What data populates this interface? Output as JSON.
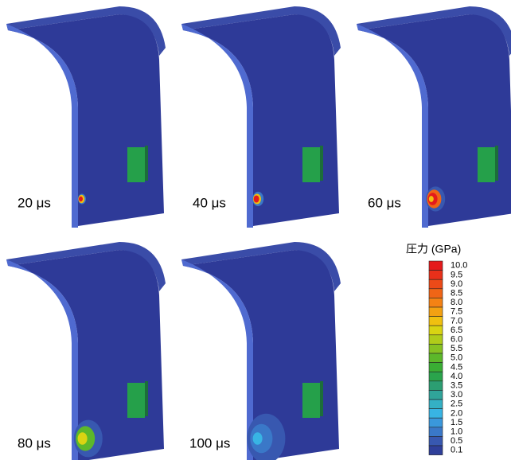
{
  "panels": [
    {
      "label": "20 μs"
    },
    {
      "label": "40 μs"
    },
    {
      "label": "60 μs"
    },
    {
      "label": "80 μs"
    },
    {
      "label": "100 μs"
    }
  ],
  "legend": {
    "title": "圧力 (GPa)",
    "levels": [
      {
        "label": "10.0",
        "color": "#e41a1c"
      },
      {
        "label": "9.5",
        "color": "#e8301a"
      },
      {
        "label": "9.0",
        "color": "#ec4a18"
      },
      {
        "label": "8.5",
        "color": "#f06516"
      },
      {
        "label": "8.0",
        "color": "#f48214"
      },
      {
        "label": "7.5",
        "color": "#f3a112"
      },
      {
        "label": "7.0",
        "color": "#f0c010"
      },
      {
        "label": "6.5",
        "color": "#d9d412"
      },
      {
        "label": "6.0",
        "color": "#b0cc1a"
      },
      {
        "label": "5.5",
        "color": "#86c222"
      },
      {
        "label": "5.0",
        "color": "#5cb82a"
      },
      {
        "label": "4.5",
        "color": "#3aae34"
      },
      {
        "label": "4.0",
        "color": "#2aa44c"
      },
      {
        "label": "3.5",
        "color": "#2c9e72"
      },
      {
        "label": "3.0",
        "color": "#30a49a"
      },
      {
        "label": "2.5",
        "color": "#34b0c4"
      },
      {
        "label": "2.0",
        "color": "#38b4e4"
      },
      {
        "label": "1.5",
        "color": "#3a98dc"
      },
      {
        "label": "1.0",
        "color": "#3a78c8"
      },
      {
        "label": "0.5",
        "color": "#3858b0"
      },
      {
        "label": "0.1",
        "color": "#2f3f9a"
      }
    ]
  }
}
